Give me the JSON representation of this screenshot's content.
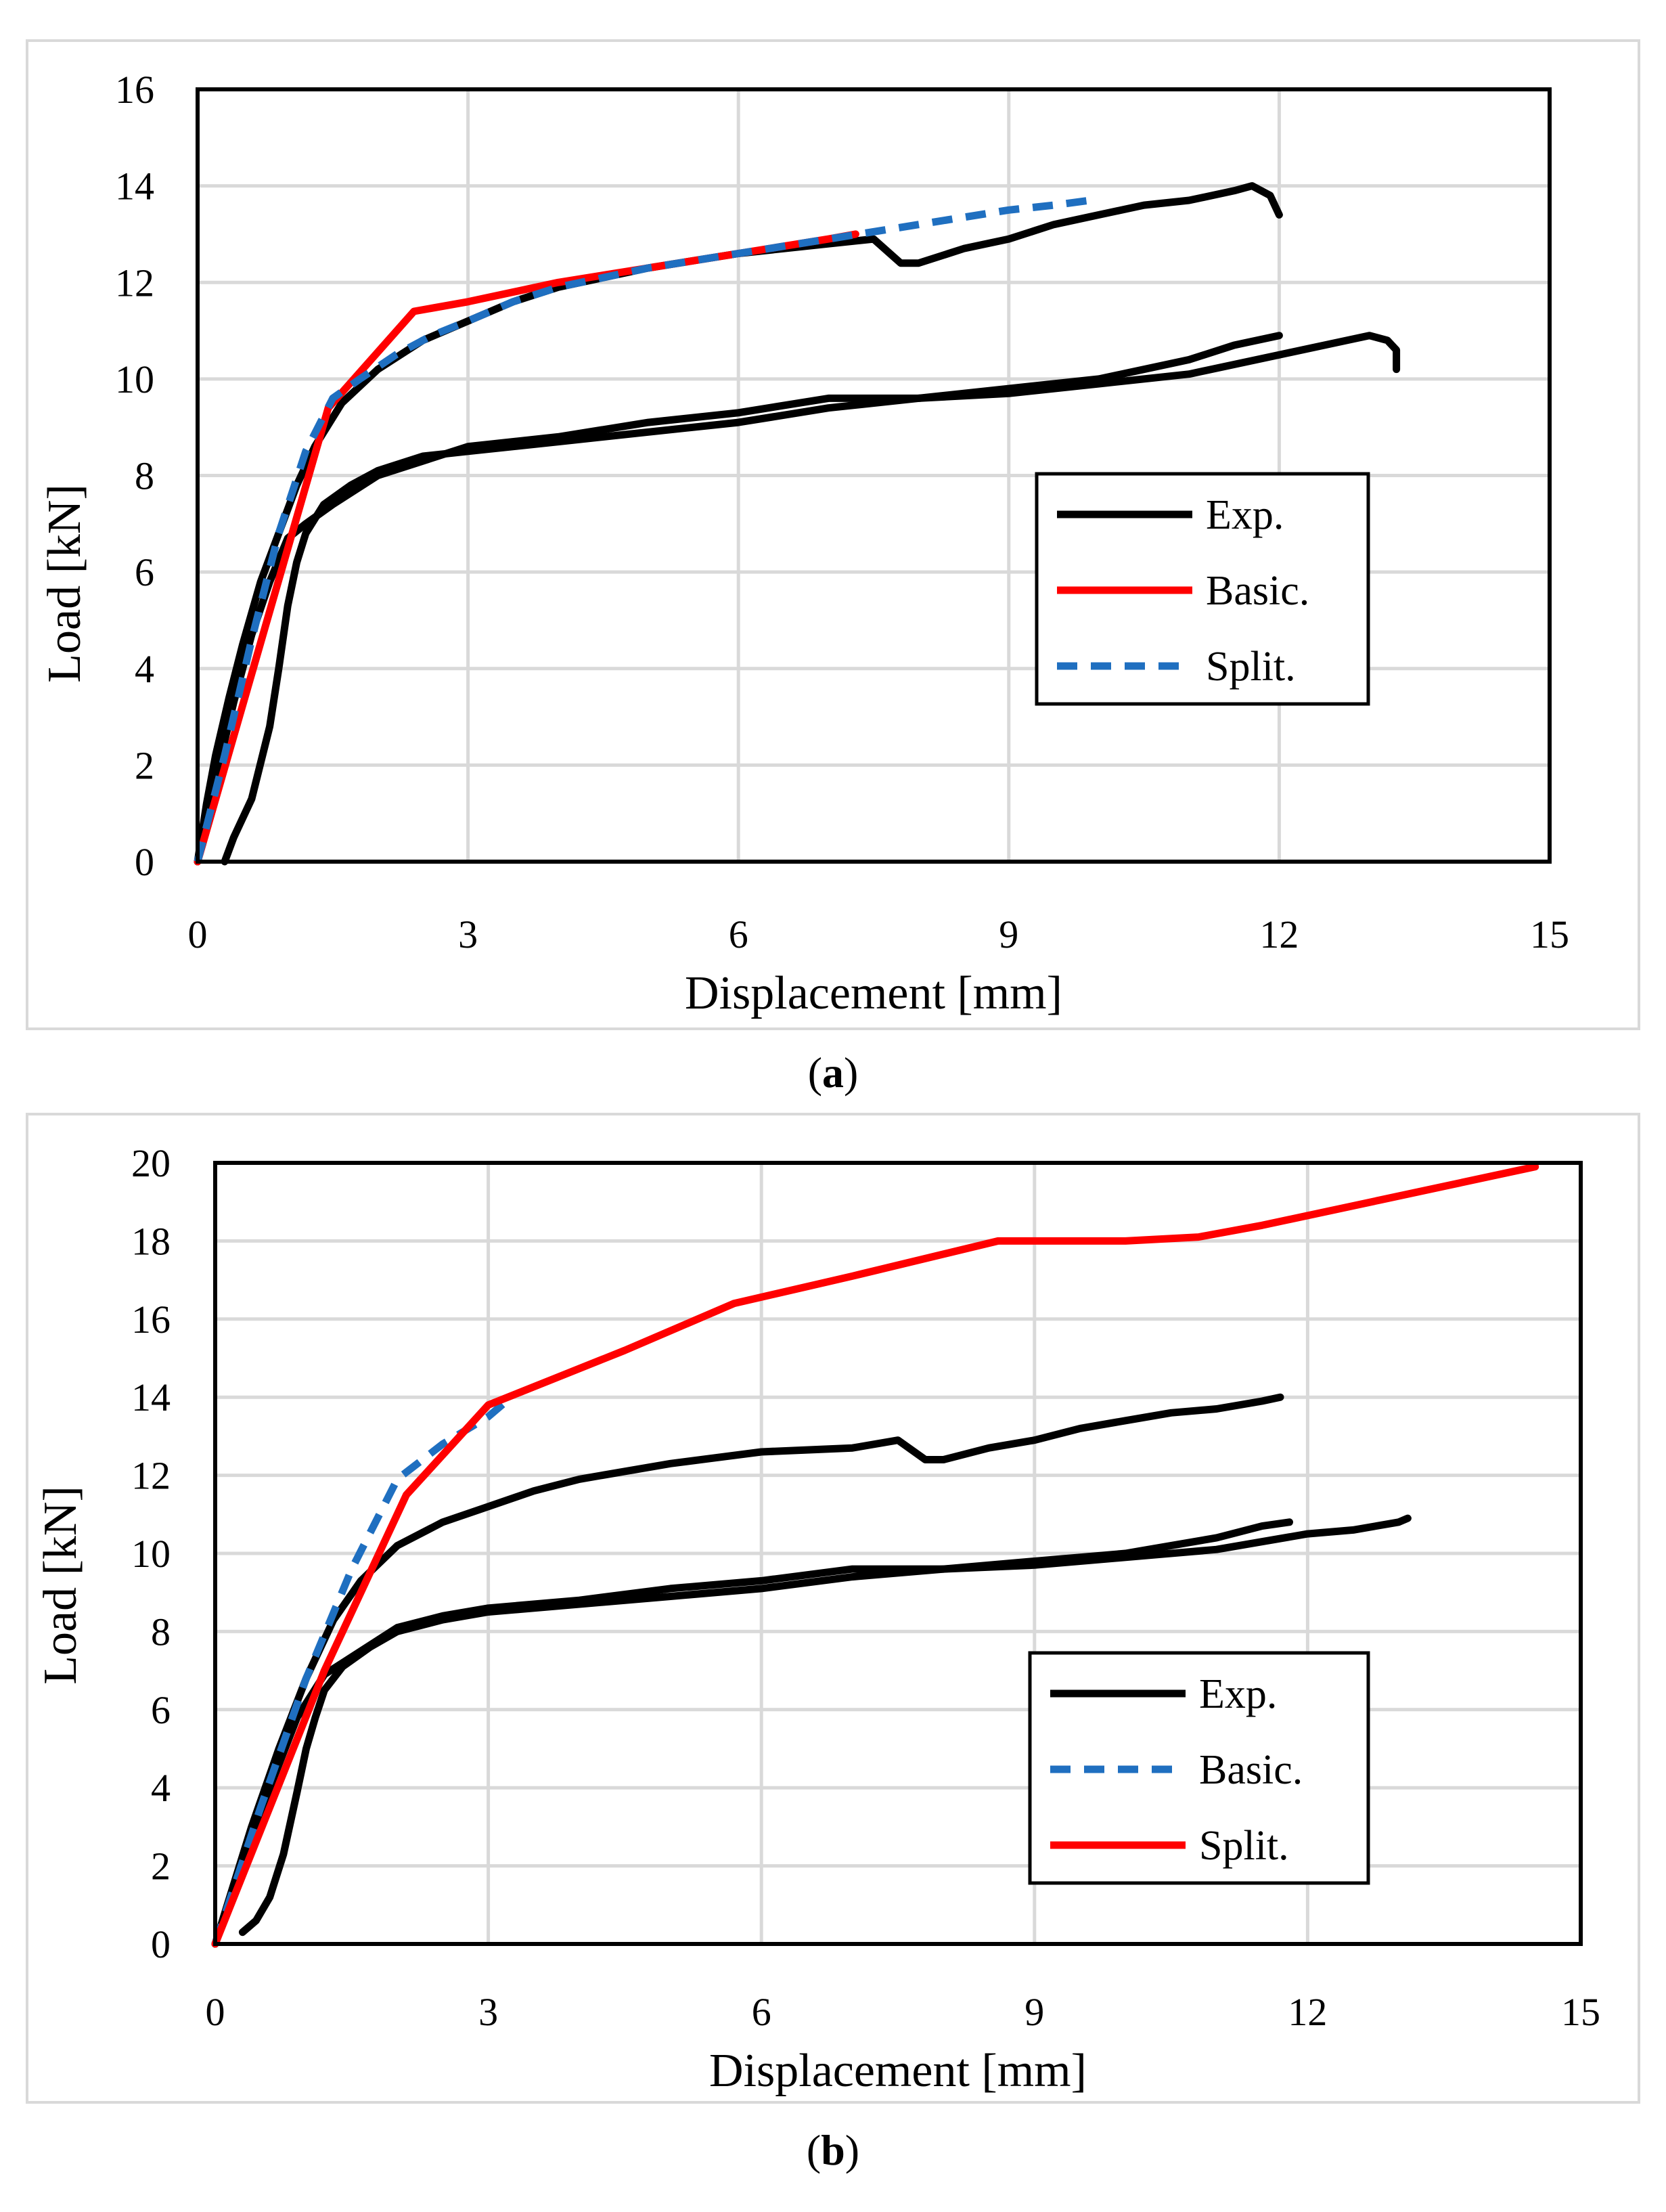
{
  "chart_data": [
    {
      "type": "line",
      "panel_label": "a",
      "xlabel": "Displacement [mm]",
      "ylabel": "Load [kN]",
      "xlim": [
        0,
        15
      ],
      "ylim": [
        0,
        16
      ],
      "xticks": [
        0,
        3,
        6,
        9,
        12,
        15
      ],
      "yticks": [
        0,
        2,
        4,
        6,
        8,
        10,
        12,
        14,
        16
      ],
      "grid": true,
      "legend_position": "right-middle",
      "legend": [
        {
          "label": "Exp.",
          "color": "#000000",
          "dash": "solid"
        },
        {
          "label": "Basic.",
          "color": "#ff0000",
          "dash": "solid"
        },
        {
          "label": "Split.",
          "color": "#1f6fc0",
          "dash": "dashed"
        }
      ],
      "series": [
        {
          "name": "Exp.",
          "color": "#000000",
          "dash": "solid",
          "x": [
            0,
            0.1,
            0.2,
            0.35,
            0.5,
            0.7,
            0.9,
            1.1,
            1.3,
            1.6,
            2.0,
            2.5,
            3.0,
            3.5,
            4.0,
            5.0,
            6.0,
            6.5,
            7.0,
            7.5,
            7.8,
            8.0,
            8.5,
            9.0,
            9.5,
            10.0,
            10.5,
            11.0,
            11.5,
            11.7,
            11.9,
            12.0
          ],
          "y": [
            0,
            1.2,
            2.2,
            3.4,
            4.5,
            5.8,
            6.8,
            7.8,
            8.6,
            9.5,
            10.2,
            10.8,
            11.2,
            11.6,
            11.9,
            12.3,
            12.6,
            12.7,
            12.8,
            12.9,
            12.4,
            12.4,
            12.7,
            12.9,
            13.2,
            13.4,
            13.6,
            13.7,
            13.9,
            14.0,
            13.8,
            13.4
          ]
        },
        {
          "name": "Exp.",
          "color": "#000000",
          "dash": "solid",
          "x": [
            0,
            0.2,
            0.4,
            0.6,
            0.8,
            1.0,
            1.2,
            1.5,
            2.0,
            2.5,
            3.0,
            4.0,
            5.0,
            6.0,
            7.0,
            8.0,
            9.0,
            10.0,
            11.0,
            11.5,
            12.0
          ],
          "y": [
            0,
            1.7,
            3.3,
            4.7,
            5.8,
            6.7,
            7.0,
            7.4,
            8.0,
            8.3,
            8.6,
            8.8,
            9.1,
            9.3,
            9.6,
            9.6,
            9.8,
            10.0,
            10.4,
            10.7,
            10.9
          ]
        },
        {
          "name": "Exp.",
          "color": "#000000",
          "dash": "solid",
          "x": [
            0.3,
            0.4,
            0.6,
            0.8,
            0.9,
            1.0,
            1.1,
            1.2,
            1.4,
            1.7,
            2.0,
            2.5,
            3.0,
            4.0,
            5.0,
            6.0,
            7.0,
            8.0,
            9.0,
            10.0,
            11.0,
            12.0,
            12.5,
            13.0,
            13.2,
            13.3,
            13.3
          ],
          "y": [
            0,
            0.5,
            1.3,
            2.8,
            4.0,
            5.3,
            6.2,
            6.8,
            7.4,
            7.8,
            8.1,
            8.4,
            8.5,
            8.7,
            8.9,
            9.1,
            9.4,
            9.6,
            9.7,
            9.9,
            10.1,
            10.5,
            10.7,
            10.9,
            10.8,
            10.6,
            10.2
          ]
        },
        {
          "name": "Basic.",
          "color": "#ff0000",
          "dash": "solid",
          "x": [
            0,
            1.45,
            2.4,
            3.0,
            4.0,
            5.0,
            6.0,
            7.0,
            7.3
          ],
          "y": [
            0,
            9.4,
            11.4,
            11.6,
            12.0,
            12.3,
            12.6,
            12.9,
            13.0
          ]
        },
        {
          "name": "Split.",
          "color": "#1f6fc0",
          "dash": "dashed",
          "x": [
            0,
            0.3,
            0.6,
            0.9,
            1.2,
            1.5,
            1.8,
            2.2,
            2.6,
            3.0,
            3.5,
            4.0,
            5.0,
            6.0,
            7.0,
            8.0,
            9.0,
            9.5,
            9.9
          ],
          "y": [
            0,
            2.2,
            4.6,
            6.8,
            8.5,
            9.6,
            10.0,
            10.5,
            10.9,
            11.2,
            11.6,
            11.9,
            12.3,
            12.6,
            12.9,
            13.2,
            13.5,
            13.6,
            13.7
          ]
        }
      ]
    },
    {
      "type": "line",
      "panel_label": "b",
      "xlabel": "Displacement [mm]",
      "ylabel": "Load [kN]",
      "xlim": [
        0,
        15
      ],
      "ylim": [
        0,
        20
      ],
      "xticks": [
        0,
        3,
        6,
        9,
        12,
        15
      ],
      "yticks": [
        0,
        2,
        4,
        6,
        8,
        10,
        12,
        14,
        16,
        18,
        20
      ],
      "grid": true,
      "legend_position": "bottom-right",
      "legend": [
        {
          "label": "Exp.",
          "color": "#000000",
          "dash": "solid"
        },
        {
          "label": "Basic.",
          "color": "#1f6fc0",
          "dash": "dashed"
        },
        {
          "label": "Split.",
          "color": "#ff0000",
          "dash": "solid"
        }
      ],
      "series": [
        {
          "name": "Exp.",
          "color": "#000000",
          "dash": "solid",
          "x": [
            0,
            0.2,
            0.4,
            0.7,
            1.0,
            1.3,
            1.6,
            2.0,
            2.5,
            3.0,
            3.5,
            4.0,
            5.0,
            6.0,
            7.0,
            7.5,
            7.8,
            8.0,
            8.5,
            9.0,
            9.5,
            10.0,
            10.5,
            11.0,
            11.5,
            11.7
          ],
          "y": [
            0,
            1.5,
            3.0,
            5.0,
            6.8,
            8.3,
            9.3,
            10.2,
            10.8,
            11.2,
            11.6,
            11.9,
            12.3,
            12.6,
            12.7,
            12.9,
            12.4,
            12.4,
            12.7,
            12.9,
            13.2,
            13.4,
            13.6,
            13.7,
            13.9,
            14.0
          ]
        },
        {
          "name": "Exp.",
          "color": "#000000",
          "dash": "solid",
          "x": [
            0,
            0.3,
            0.6,
            0.9,
            1.2,
            1.6,
            2.0,
            2.5,
            3.0,
            4.0,
            5.0,
            6.0,
            7.0,
            8.0,
            9.0,
            10.0,
            11.0,
            11.5,
            11.8
          ],
          "y": [
            0,
            2.0,
            4.0,
            5.8,
            6.9,
            7.5,
            8.1,
            8.4,
            8.6,
            8.8,
            9.1,
            9.3,
            9.6,
            9.6,
            9.8,
            10.0,
            10.4,
            10.7,
            10.8
          ]
        },
        {
          "name": "Exp.",
          "color": "#000000",
          "dash": "solid",
          "x": [
            0.3,
            0.45,
            0.6,
            0.75,
            0.9,
            1.0,
            1.1,
            1.2,
            1.4,
            1.7,
            2.0,
            2.5,
            3.0,
            4.0,
            5.0,
            6.0,
            7.0,
            8.0,
            9.0,
            10.0,
            11.0,
            12.0,
            12.5,
            13.0,
            13.1
          ],
          "y": [
            0.3,
            0.6,
            1.2,
            2.3,
            3.9,
            5.0,
            5.8,
            6.5,
            7.1,
            7.6,
            8.0,
            8.3,
            8.5,
            8.7,
            8.9,
            9.1,
            9.4,
            9.6,
            9.7,
            9.9,
            10.1,
            10.5,
            10.6,
            10.8,
            10.9
          ]
        },
        {
          "name": "Basic.",
          "color": "#1f6fc0",
          "dash": "dashed",
          "x": [
            0,
            0.5,
            1.0,
            1.5,
            2.0,
            2.5,
            3.0,
            3.2
          ],
          "y": [
            0,
            3.5,
            6.8,
            9.6,
            11.9,
            12.8,
            13.5,
            13.9
          ]
        },
        {
          "name": "Split.",
          "color": "#ff0000",
          "dash": "solid",
          "x": [
            0,
            1.2,
            2.1,
            3.0,
            4.5,
            5.7,
            7.0,
            8.6,
            10.0,
            10.8,
            11.5,
            12.5,
            13.5,
            14.5
          ],
          "y": [
            0,
            7.0,
            11.5,
            13.8,
            15.2,
            16.4,
            17.1,
            18.0,
            18.0,
            18.1,
            18.4,
            18.9,
            19.4,
            19.9
          ]
        }
      ]
    }
  ]
}
